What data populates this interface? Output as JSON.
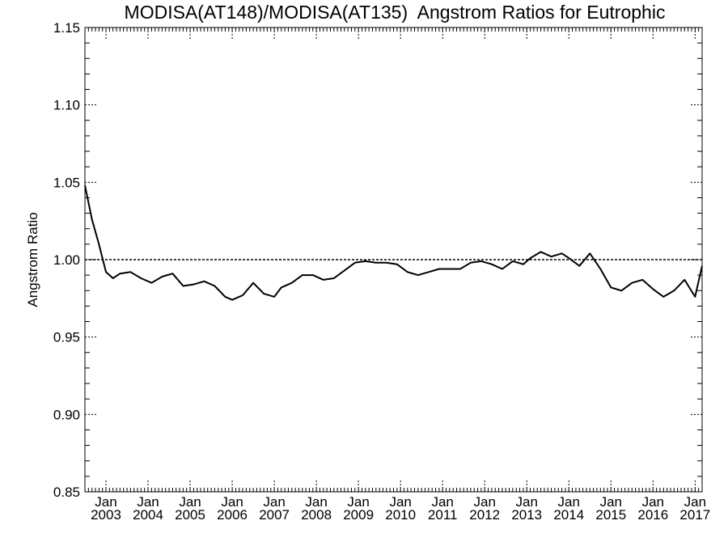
{
  "chart_data": {
    "type": "line",
    "title": "MODISA(AT148)/MODISA(AT135)  Angstrom Ratios for Eutrophic",
    "xlabel": "",
    "ylabel": "Angstrom Ratio",
    "ylim": [
      0.85,
      1.15
    ],
    "xlim": [
      "2002-07",
      "2017-03"
    ],
    "y_ticks": [
      "0.85",
      "0.90",
      "0.95",
      "1.00",
      "1.05",
      "1.10",
      "1.15"
    ],
    "x_ticks": [
      {
        "month": "Jan",
        "year": "2003"
      },
      {
        "month": "Jan",
        "year": "2004"
      },
      {
        "month": "Jan",
        "year": "2005"
      },
      {
        "month": "Jan",
        "year": "2006"
      },
      {
        "month": "Jan",
        "year": "2007"
      },
      {
        "month": "Jan",
        "year": "2008"
      },
      {
        "month": "Jan",
        "year": "2009"
      },
      {
        "month": "Jan",
        "year": "2010"
      },
      {
        "month": "Jan",
        "year": "2011"
      },
      {
        "month": "Jan",
        "year": "2012"
      },
      {
        "month": "Jan",
        "year": "2013"
      },
      {
        "month": "Jan",
        "year": "2014"
      },
      {
        "month": "Jan",
        "year": "2015"
      },
      {
        "month": "Jan",
        "year": "2016"
      },
      {
        "month": "Jan",
        "year": "2017"
      }
    ],
    "reference_line": 1.0,
    "grid": false,
    "series": [
      {
        "color": "#000000",
        "x": [
          "2002-07",
          "2002-09",
          "2002-11",
          "2003-01",
          "2003-03",
          "2003-05",
          "2003-08",
          "2003-11",
          "2004-02",
          "2004-05",
          "2004-08",
          "2004-11",
          "2005-02",
          "2005-05",
          "2005-08",
          "2005-11",
          "2006-01",
          "2006-04",
          "2006-07",
          "2006-10",
          "2007-01",
          "2007-03",
          "2007-06",
          "2007-09",
          "2007-12",
          "2008-03",
          "2008-06",
          "2008-09",
          "2008-12",
          "2009-03",
          "2009-06",
          "2009-09",
          "2009-12",
          "2010-03",
          "2010-06",
          "2010-09",
          "2010-12",
          "2011-03",
          "2011-06",
          "2011-09",
          "2011-12",
          "2012-03",
          "2012-06",
          "2012-09",
          "2012-12",
          "2013-02",
          "2013-05",
          "2013-08",
          "2013-11",
          "2014-01",
          "2014-04",
          "2014-07",
          "2014-10",
          "2015-01",
          "2015-04",
          "2015-07",
          "2015-10",
          "2016-01",
          "2016-04",
          "2016-07",
          "2016-10",
          "2017-01",
          "2017-03"
        ],
        "y": [
          1.048,
          1.026,
          1.01,
          0.992,
          0.988,
          0.991,
          0.992,
          0.988,
          0.985,
          0.989,
          0.991,
          0.983,
          0.984,
          0.986,
          0.983,
          0.976,
          0.974,
          0.977,
          0.985,
          0.978,
          0.976,
          0.982,
          0.985,
          0.99,
          0.99,
          0.987,
          0.988,
          0.993,
          0.998,
          0.999,
          0.998,
          0.998,
          0.997,
          0.992,
          0.99,
          0.992,
          0.994,
          0.994,
          0.994,
          0.998,
          0.999,
          0.997,
          0.994,
          0.999,
          0.997,
          1.001,
          1.005,
          1.002,
          1.004,
          1.001,
          0.996,
          1.004,
          0.994,
          0.982,
          0.98,
          0.985,
          0.987,
          0.981,
          0.976,
          0.98,
          0.987,
          0.976,
          0.996
        ]
      }
    ]
  }
}
